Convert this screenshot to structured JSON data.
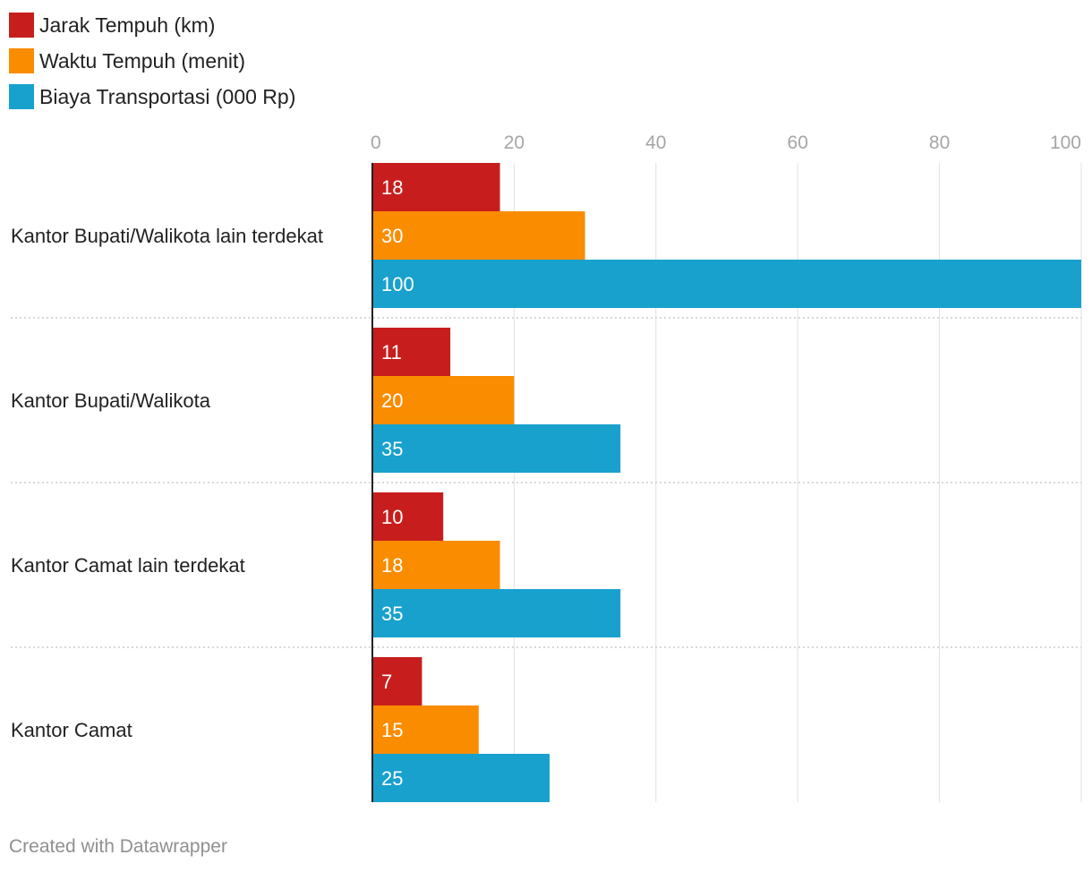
{
  "chart_data": {
    "type": "bar",
    "orientation": "horizontal",
    "categories": [
      "Kantor Bupati/Walikota lain terdekat",
      "Kantor Bupati/Walikota",
      "Kantor Camat lain terdekat",
      "Kantor Camat"
    ],
    "series": [
      {
        "name": "Jarak Tempuh (km)",
        "color": "#c71e1d",
        "values": [
          18,
          11,
          10,
          7
        ]
      },
      {
        "name": "Waktu Tempuh (menit)",
        "color": "#fa8c00",
        "values": [
          30,
          20,
          18,
          15
        ]
      },
      {
        "name": "Biaya Transportasi (000 Rp)",
        "color": "#18a1cd",
        "values": [
          100,
          35,
          35,
          25
        ]
      }
    ],
    "xlim": [
      0,
      100
    ],
    "x_ticks": [
      "0",
      "20",
      "40",
      "60",
      "80",
      "100"
    ],
    "legend_position": "top-left",
    "grid": true
  },
  "footer": "Created with Datawrapper"
}
